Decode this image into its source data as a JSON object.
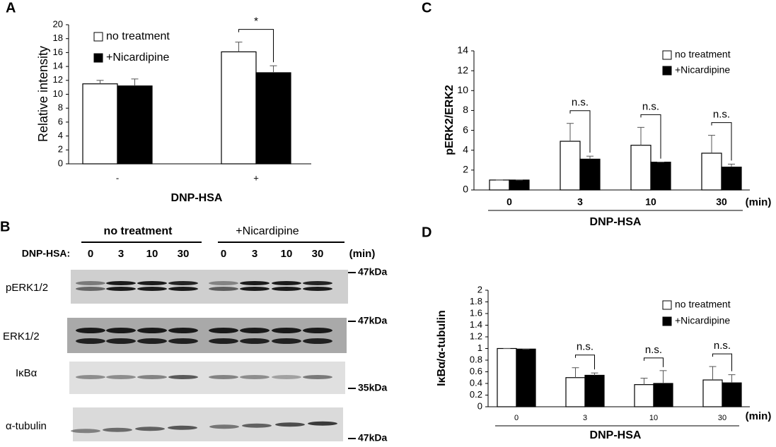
{
  "chart_data": [
    {
      "type": "bar",
      "panel_label": "A",
      "y_label": "Relative intensity",
      "x_label": "DNP-HSA",
      "categories": [
        "-",
        "+"
      ],
      "series": [
        {
          "name": "no treatment",
          "color": "#ffffff",
          "values": [
            11.5,
            16.1
          ],
          "errors": [
            0.5,
            1.4
          ]
        },
        {
          "name": "+Nicardipine",
          "color": "#000000",
          "values": [
            11.2,
            13.1
          ],
          "errors": [
            1.0,
            1.0
          ]
        }
      ],
      "significance": [
        null,
        "*"
      ],
      "ylim": [
        0,
        20
      ],
      "yticks": [
        0,
        2,
        4,
        6,
        8,
        10,
        12,
        14,
        16,
        18,
        20
      ]
    },
    {
      "type": "bar",
      "panel_label": "C",
      "y_label": "pERK2/ERK2",
      "x_label": "DNP-HSA",
      "x_unit": "(min)",
      "categories": [
        "0",
        "3",
        "10",
        "30"
      ],
      "series": [
        {
          "name": "no treatment",
          "color": "#ffffff",
          "values": [
            1.0,
            4.9,
            4.5,
            3.7
          ],
          "errors": [
            0,
            1.8,
            1.8,
            1.8
          ]
        },
        {
          "name": "+Nicardipine",
          "color": "#000000",
          "values": [
            1.0,
            3.1,
            2.8,
            2.3
          ],
          "errors": [
            0,
            0.3,
            0,
            0.3
          ]
        }
      ],
      "significance": [
        null,
        "n.s.",
        "n.s.",
        "n.s."
      ],
      "ylim": [
        0,
        14
      ],
      "yticks": [
        0,
        2,
        4,
        6,
        8,
        10,
        12,
        14
      ]
    },
    {
      "type": "bar",
      "panel_label": "D",
      "y_label": "IκBα/α-tubulin",
      "x_label": "DNP-HSA",
      "x_unit": "(min)",
      "categories": [
        "0",
        "3",
        "10",
        "30"
      ],
      "series": [
        {
          "name": "no treatment",
          "color": "#ffffff",
          "values": [
            1.0,
            0.5,
            0.38,
            0.46
          ],
          "errors": [
            0,
            0.17,
            0.11,
            0.23
          ]
        },
        {
          "name": "+Nicardipine",
          "color": "#000000",
          "values": [
            0.99,
            0.54,
            0.4,
            0.41
          ],
          "errors": [
            0,
            0.04,
            0.22,
            0.14
          ]
        }
      ],
      "significance": [
        null,
        "n.s.",
        "n.s.",
        "n.s."
      ],
      "ylim": [
        0,
        2
      ],
      "yticks": [
        0,
        0.2,
        0.4,
        0.6,
        0.8,
        1,
        1.2,
        1.4,
        1.6,
        1.8,
        2
      ]
    }
  ],
  "blot": {
    "panel_label": "B",
    "groups": [
      "no treatment",
      "+Nicardipine"
    ],
    "lane_header": "DNP-HSA:",
    "lanes": [
      "0",
      "3",
      "10",
      "30",
      "0",
      "3",
      "10",
      "30"
    ],
    "unit": "(min)",
    "rows": [
      {
        "label": "pERK1/2",
        "marker": "47kDa"
      },
      {
        "label": "ERK1/2",
        "marker": "47kDa"
      },
      {
        "label": "IκBα",
        "marker": "35kDa"
      },
      {
        "label": "α-tubulin",
        "marker": "47kDa"
      }
    ]
  }
}
